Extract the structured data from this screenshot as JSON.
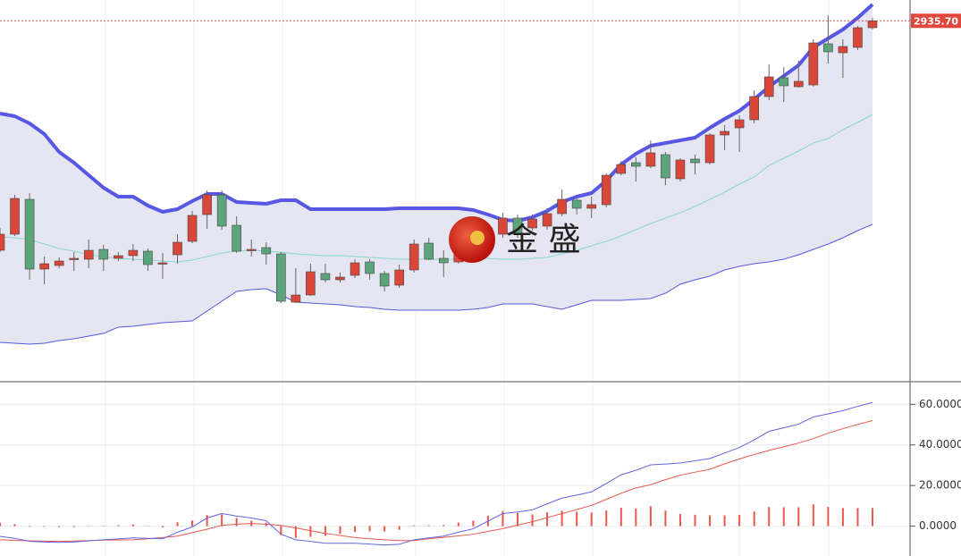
{
  "chart_data": [
    {
      "type": "candlestick",
      "open": [
        2679,
        2697,
        2736,
        2658,
        2662,
        2669,
        2669,
        2680,
        2670,
        2673,
        2678,
        2664,
        2674,
        2689,
        2719,
        2741,
        2707,
        2679,
        2682,
        2675,
        2621,
        2629,
        2653,
        2646,
        2651,
        2666,
        2653,
        2640,
        2657,
        2687,
        2670,
        2666,
        2679,
        2691,
        2697,
        2715,
        2704,
        2706,
        2720,
        2735,
        2726,
        2730,
        2765,
        2777,
        2773,
        2786,
        2759,
        2781,
        2777,
        2808,
        2816,
        2825,
        2851,
        2872,
        2862,
        2864,
        2910,
        2900,
        2906,
        2928
      ],
      "high": [
        2704,
        2741,
        2743,
        2672,
        2671,
        2677,
        2691,
        2685,
        2677,
        2686,
        2681,
        2676,
        2697,
        2723,
        2746,
        2746,
        2717,
        2691,
        2688,
        2677,
        2659,
        2664,
        2664,
        2654,
        2669,
        2669,
        2656,
        2663,
        2691,
        2693,
        2679,
        2683,
        2701,
        2709,
        2721,
        2719,
        2719,
        2726,
        2747,
        2739,
        2739,
        2765,
        2779,
        2783,
        2802,
        2789,
        2782,
        2786,
        2810,
        2819,
        2830,
        2858,
        2887,
        2884,
        2891,
        2915,
        2942,
        2915,
        2930,
        2939
      ],
      "low": [
        2677,
        2695,
        2646,
        2641,
        2659,
        2656,
        2659,
        2656,
        2667,
        2667,
        2656,
        2647,
        2664,
        2687,
        2703,
        2702,
        2676,
        2672,
        2663,
        2620,
        2620,
        2628,
        2643,
        2643,
        2648,
        2646,
        2633,
        2637,
        2654,
        2668,
        2649,
        2664,
        2677,
        2687,
        2693,
        2693,
        2701,
        2702,
        2717,
        2719,
        2715,
        2727,
        2763,
        2756,
        2771,
        2752,
        2756,
        2764,
        2775,
        2791,
        2789,
        2821,
        2847,
        2845,
        2861,
        2862,
        2888,
        2872,
        2903,
        2926
      ],
      "close": [
        2697,
        2737,
        2658,
        2664,
        2667,
        2670,
        2679,
        2669,
        2673,
        2679,
        2663,
        2665,
        2688,
        2718,
        2741,
        2706,
        2678,
        2680,
        2675,
        2622,
        2629,
        2655,
        2646,
        2649,
        2665,
        2653,
        2639,
        2657,
        2686,
        2669,
        2665,
        2679,
        2697,
        2704,
        2715,
        2697,
        2714,
        2720,
        2736,
        2726,
        2730,
        2763,
        2775,
        2773,
        2788,
        2760,
        2780,
        2777,
        2808,
        2812,
        2825,
        2851,
        2873,
        2863,
        2868,
        2911,
        2901,
        2907,
        2928,
        2935.7
      ],
      "up_color": "#d9473b",
      "down_color": "#5ca57c",
      "ylim": [
        2534,
        2959
      ],
      "last_price": {
        "value": 2935.7,
        "label": "2935.70"
      },
      "last_price_color": "#e0483d",
      "bands": {
        "upper": [
          2832,
          2829,
          2821,
          2809,
          2789,
          2777,
          2763,
          2749,
          2739,
          2739,
          2729,
          2722,
          2725,
          2734,
          2742,
          2742,
          2733,
          2732,
          2731,
          2735,
          2735,
          2725,
          2725,
          2725,
          2725,
          2725,
          2725,
          2726,
          2726,
          2726,
          2726,
          2726,
          2724,
          2719,
          2713,
          2712,
          2716,
          2723,
          2733,
          2739,
          2743,
          2757,
          2775,
          2787,
          2796,
          2799,
          2802,
          2805,
          2816,
          2826,
          2835,
          2848,
          2862,
          2874,
          2886,
          2906,
          2916,
          2926,
          2939,
          2954
        ],
        "middle": [
          2694,
          2693,
          2691,
          2686,
          2681,
          2678,
          2674,
          2672,
          2670,
          2669,
          2668,
          2667,
          2666,
          2668,
          2672,
          2676,
          2678,
          2679,
          2678,
          2677,
          2675,
          2674,
          2673,
          2673,
          2672,
          2671,
          2670,
          2669,
          2669,
          2669,
          2669,
          2669,
          2670,
          2670,
          2669,
          2669,
          2670,
          2671,
          2675,
          2679,
          2684,
          2689,
          2695,
          2702,
          2709,
          2715,
          2721,
          2728,
          2736,
          2744,
          2753,
          2761,
          2774,
          2782,
          2790,
          2799,
          2804,
          2814,
          2822,
          2831
        ],
        "lower": [
          2576,
          2575,
          2574,
          2575,
          2578,
          2580,
          2583,
          2586,
          2593,
          2594,
          2596,
          2598,
          2599,
          2600,
          2611,
          2622,
          2633,
          2635,
          2636,
          2629,
          2621,
          2620,
          2619,
          2618,
          2616,
          2615,
          2613,
          2612,
          2612,
          2612,
          2612,
          2612,
          2613,
          2615,
          2619,
          2619,
          2619,
          2616,
          2613,
          2618,
          2623,
          2623,
          2623,
          2624,
          2625,
          2631,
          2641,
          2646,
          2650,
          2657,
          2661,
          2664,
          2666,
          2669,
          2674,
          2680,
          2686,
          2693,
          2701,
          2708
        ],
        "band_color": "#5757e3",
        "middle_color": "#86d9c9",
        "fill": "#e6e6f2"
      },
      "watermark": "金 盛"
    },
    {
      "type": "macd",
      "dif": [
        -5,
        -6,
        -7.5,
        -7.8,
        -8,
        -7.8,
        -7.2,
        -6.7,
        -6.3,
        -5.8,
        -6,
        -6.2,
        -3,
        -0.4,
        4,
        6.2,
        5,
        4,
        2.7,
        -4,
        -6.7,
        -7.5,
        -8.4,
        -8.4,
        -8.4,
        -8.8,
        -9.3,
        -8.9,
        -6.7,
        -5.8,
        -4.9,
        -3,
        -1.3,
        2.5,
        6.2,
        7,
        8,
        11,
        13.8,
        15.3,
        16.9,
        21,
        25.3,
        27.5,
        30.2,
        30.6,
        31.1,
        32.2,
        33.3,
        36,
        38.7,
        42.5,
        46.7,
        48.4,
        50.2,
        53.8,
        55.3,
        56.9,
        59,
        60.9
      ],
      "dea": [
        -6.7,
        -7,
        -7.2,
        -7.4,
        -7.5,
        -7.3,
        -7.1,
        -6.9,
        -6.8,
        -6.7,
        -6.2,
        -5.6,
        -4.9,
        -3.2,
        -1.5,
        0.4,
        1,
        1.3,
        1,
        0.4,
        -0.9,
        -2.2,
        -3.6,
        -4.6,
        -5.6,
        -6.2,
        -6.7,
        -7.1,
        -7.1,
        -6.2,
        -5.5,
        -4.8,
        -4,
        -2.6,
        -1.2,
        0.5,
        2.2,
        4.2,
        6.2,
        8.2,
        10.2,
        13.2,
        16.2,
        18.8,
        20.4,
        22.9,
        25.1,
        26.6,
        28,
        30.7,
        33.1,
        35.3,
        37.3,
        39.1,
        40.9,
        43.1,
        45.8,
        48,
        50.1,
        52
      ],
      "hist": [
        1.7,
        1,
        -0.3,
        -0.4,
        -0.5,
        -0.5,
        -0.1,
        0.2,
        0.5,
        0.9,
        0.2,
        -0.6,
        1.9,
        2.8,
        5.5,
        5.8,
        4,
        2.7,
        1.7,
        -4.4,
        -5.8,
        -5.3,
        -4.8,
        -3.8,
        -2.8,
        -2.6,
        -2.6,
        -1.8,
        0.4,
        0.4,
        0.6,
        1.8,
        2.7,
        5.1,
        7.4,
        6.5,
        5.8,
        6.8,
        7.6,
        7.1,
        6.7,
        7.8,
        9.1,
        8.7,
        9.8,
        7.7,
        6,
        5.6,
        5.3,
        5.3,
        5.6,
        7.2,
        9.4,
        9.3,
        9.3,
        10.7,
        9.5,
        8.9,
        8.9,
        8.9
      ],
      "dif_color": "#6464e0",
      "dea_color": "#e8584e",
      "hist_color": "#e8584e",
      "ylim": [
        -14.7,
        70.7
      ],
      "yticks": [
        {
          "value": 60,
          "label": "60.0000"
        },
        {
          "value": 40,
          "label": "40.0000"
        },
        {
          "value": 20,
          "label": "20.0000"
        },
        {
          "value": 0,
          "label": "0.0000"
        }
      ],
      "grid": true
    }
  ]
}
